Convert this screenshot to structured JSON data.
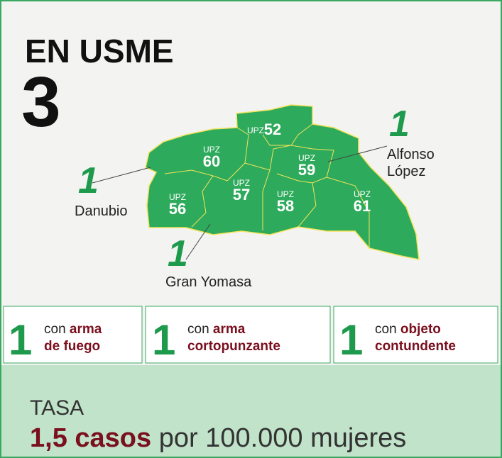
{
  "title": "EN USME",
  "total": "3",
  "map": {
    "upz": [
      {
        "prefix": "UPZ",
        "number": "52"
      },
      {
        "prefix": "UPZ",
        "number": "60"
      },
      {
        "prefix": "UPZ",
        "number": "59"
      },
      {
        "prefix": "UPZ",
        "number": "57"
      },
      {
        "prefix": "UPZ",
        "number": "56"
      },
      {
        "prefix": "UPZ",
        "number": "58"
      },
      {
        "prefix": "UPZ",
        "number": "61"
      }
    ],
    "callouts": [
      {
        "count": "1",
        "name": [
          "Danubio"
        ]
      },
      {
        "count": "1",
        "name": [
          "Alfonso",
          "López"
        ]
      },
      {
        "count": "1",
        "name": [
          "Gran Yomasa"
        ]
      }
    ]
  },
  "weapons": [
    {
      "count": "1",
      "prefix": "con",
      "bold": "arma",
      "second": "de fuego"
    },
    {
      "count": "1",
      "prefix": "con",
      "bold": "arma",
      "second": "cortopunzante"
    },
    {
      "count": "1",
      "prefix": "con",
      "bold": "objeto",
      "second": "contundente"
    }
  ],
  "rate": {
    "label": "TASA",
    "value": "1,5 casos",
    "unit": "por 100.000 mujeres"
  }
}
